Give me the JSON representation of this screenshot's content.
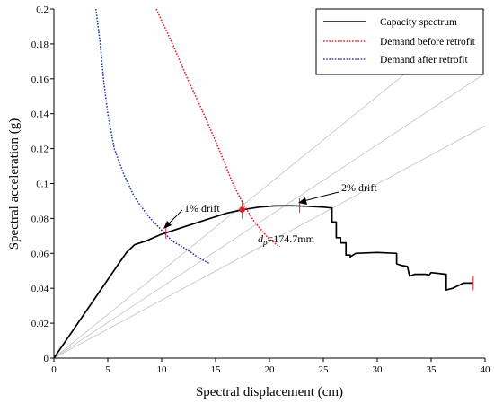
{
  "chart_data": {
    "type": "line",
    "xlabel": "Spectral displacement (cm)",
    "ylabel": "Spectral acceleration (g)",
    "xlim": [
      0,
      40
    ],
    "ylim": [
      0,
      0.2
    ],
    "x_ticks": [
      0,
      5,
      10,
      15,
      20,
      25,
      30,
      35,
      40
    ],
    "x_tick_labels": [
      "0",
      "5",
      "10",
      "15",
      "20",
      "25",
      "30",
      "35",
      "40"
    ],
    "y_ticks": [
      0,
      0.02,
      0.04,
      0.06,
      0.08,
      0.1,
      0.12,
      0.14,
      0.16,
      0.18,
      0.2
    ],
    "y_tick_labels": [
      "0",
      "0.02",
      "0.04",
      "0.06",
      "0.08",
      "0.1",
      "0.12",
      "0.14",
      "0.16",
      "0.18",
      "0.2"
    ],
    "grid": false,
    "legend_position": "top-right",
    "series": [
      {
        "name": "Capacity spectrum",
        "color": "#000000",
        "style": "solid",
        "points": [
          [
            0,
            0
          ],
          [
            2,
            0.018
          ],
          [
            4,
            0.036
          ],
          [
            6,
            0.054
          ],
          [
            6.8,
            0.061
          ],
          [
            7.5,
            0.065
          ],
          [
            8.5,
            0.067
          ],
          [
            10,
            0.071
          ],
          [
            12,
            0.075
          ],
          [
            14,
            0.079
          ],
          [
            16,
            0.083
          ],
          [
            17.5,
            0.085
          ],
          [
            19,
            0.0865
          ],
          [
            20.5,
            0.0872
          ],
          [
            22,
            0.0873
          ],
          [
            23.5,
            0.087
          ],
          [
            25,
            0.0865
          ],
          [
            25.8,
            0.086
          ],
          [
            25.8,
            0.078
          ],
          [
            26.2,
            0.078
          ],
          [
            26.2,
            0.069
          ],
          [
            26.6,
            0.069
          ],
          [
            26.6,
            0.066
          ],
          [
            27.1,
            0.066
          ],
          [
            27.1,
            0.059
          ],
          [
            27.5,
            0.059
          ],
          [
            27.5,
            0.058
          ],
          [
            28,
            0.06
          ],
          [
            30,
            0.0605
          ],
          [
            31.8,
            0.06
          ],
          [
            31.8,
            0.054
          ],
          [
            32.3,
            0.053
          ],
          [
            32.8,
            0.0525
          ],
          [
            33,
            0.047
          ],
          [
            33.5,
            0.048
          ],
          [
            34.5,
            0.048
          ],
          [
            34.8,
            0.0475
          ],
          [
            35,
            0.049
          ],
          [
            36.4,
            0.048
          ],
          [
            36.4,
            0.039
          ],
          [
            37,
            0.04
          ],
          [
            38,
            0.043
          ],
          [
            38.9,
            0.043
          ]
        ]
      },
      {
        "name": "Demand before retrofit",
        "color": "#e8202a",
        "style": "dotted",
        "points": [
          [
            9.5,
            0.2
          ],
          [
            11,
            0.18
          ],
          [
            12.4,
            0.16
          ],
          [
            13.9,
            0.14
          ],
          [
            15.3,
            0.12
          ],
          [
            16.6,
            0.1
          ],
          [
            17.6,
            0.088
          ],
          [
            18.6,
            0.078
          ],
          [
            20,
            0.068
          ],
          [
            20.7,
            0.065
          ],
          [
            21,
            0.064
          ]
        ]
      },
      {
        "name": "Demand after retrofit",
        "color": "#2b3aa6",
        "style": "dotted",
        "points": [
          [
            3.9,
            0.2
          ],
          [
            4.3,
            0.18
          ],
          [
            4.6,
            0.16
          ],
          [
            5,
            0.14
          ],
          [
            5.6,
            0.12
          ],
          [
            6.5,
            0.105
          ],
          [
            7.5,
            0.092
          ],
          [
            8.8,
            0.081
          ],
          [
            10.2,
            0.072
          ],
          [
            11,
            0.067
          ],
          [
            12.4,
            0.062
          ],
          [
            13.3,
            0.058
          ],
          [
            14.5,
            0.054
          ]
        ]
      }
    ],
    "reference_lines": [
      {
        "to": [
          40,
          0.2
        ]
      },
      {
        "to": [
          40,
          0.163
        ]
      },
      {
        "to": [
          40,
          0.133
        ]
      }
    ],
    "performance_point": {
      "x": 17.47,
      "y": 0.085,
      "color": "#e8202a"
    },
    "drift_markers": [
      {
        "x": 10.4,
        "y": 0.0725,
        "label": "1% drift"
      },
      {
        "x": 22.8,
        "y": 0.0875,
        "label": "2% drift"
      }
    ],
    "end_marker": {
      "x": 38.9,
      "y": 0.043
    },
    "annotations": {
      "one_percent": "1% drift",
      "two_percent": "2% drift",
      "dp_symbol": "d",
      "dp_subscript": "p",
      "dp_value": "=174.7mm"
    }
  }
}
